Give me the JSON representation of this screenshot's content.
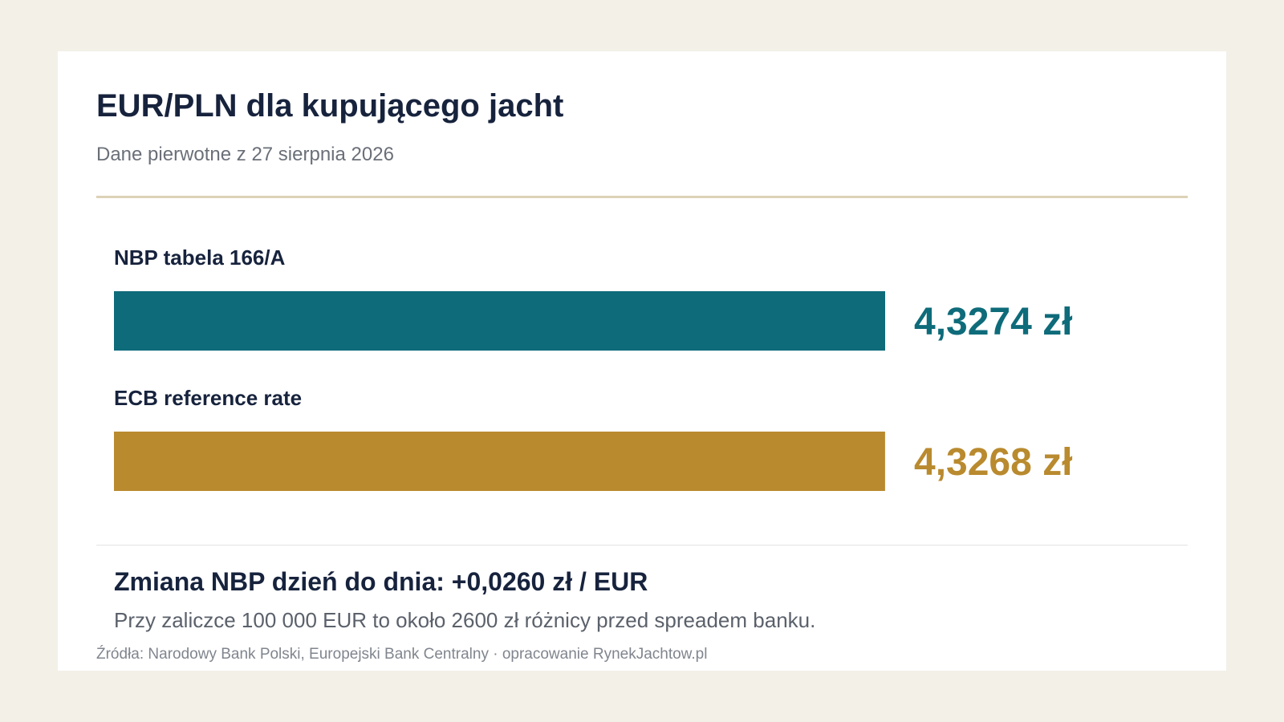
{
  "title": "EUR/PLN dla kupującego jacht",
  "subtitle": "Dane pierwotne z 27 sierpnia 2026",
  "chart_data": {
    "type": "bar",
    "orientation": "horizontal",
    "categories": [
      "NBP tabela 166/A",
      "ECB reference rate"
    ],
    "values": [
      4.3274,
      4.3268
    ],
    "value_labels": [
      "4,3274 zł",
      "4,3268 zł"
    ],
    "colors": [
      "#0e6b7a",
      "#b98a2e"
    ],
    "title": "",
    "xlabel": "",
    "ylabel": "",
    "grid": false
  },
  "summary": {
    "change": "Zmiana NBP dzień do dnia: +0,0260 zł / EUR",
    "note": "Przy zaliczce 100 000 EUR to około 2600 zł różnicy przed spreadem banku."
  },
  "source": "Źródła: Narodowy Bank Polski, Europejski Bank Centralny · opracowanie RynekJachtow.pl"
}
